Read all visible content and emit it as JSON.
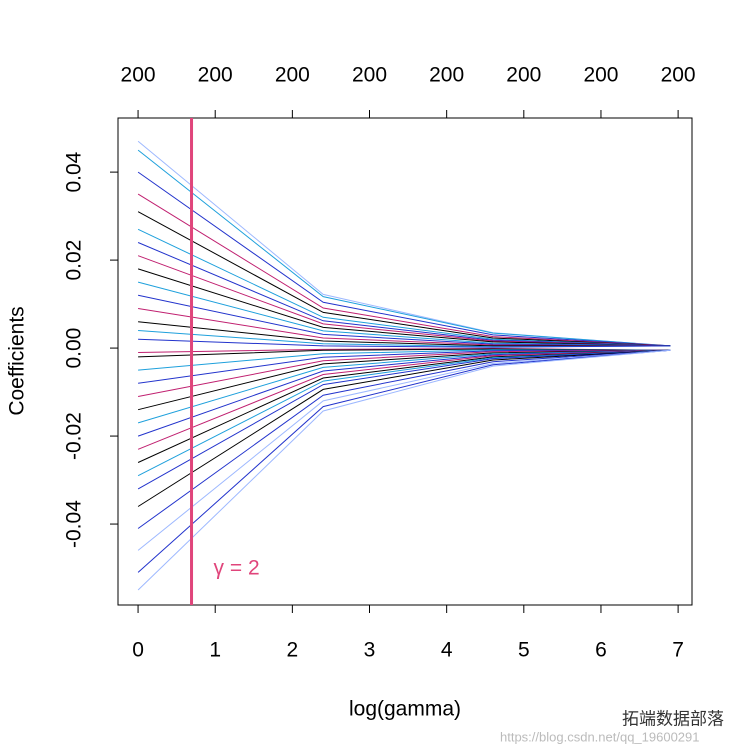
{
  "chart_data": {
    "type": "line",
    "x_label": "log(gamma)",
    "y_label": "Coefficients",
    "x": [
      0,
      2.4,
      4.6,
      6.9
    ],
    "xlim": [
      -0.26,
      7.18
    ],
    "ylim": [
      -0.0584,
      0.0523
    ],
    "xticks": [
      0,
      1,
      2,
      3,
      4,
      5,
      6,
      7
    ],
    "yticks": [
      -0.04,
      -0.02,
      {
        "value": 0,
        "label": "0.00"
      },
      0.02,
      0.04
    ],
    "top_ticks": [
      {
        "value": 0,
        "label": "200"
      },
      {
        "value": 1,
        "label": "200"
      },
      {
        "value": 2,
        "label": "200"
      },
      {
        "value": 3,
        "label": "200"
      },
      {
        "value": 4,
        "label": "200"
      },
      {
        "value": 5,
        "label": "200"
      },
      {
        "value": 6,
        "label": "200"
      },
      {
        "value": 7,
        "label": "200"
      }
    ],
    "vline": {
      "x": 0.693,
      "color": "#e0457b",
      "label": "γ = 2"
    },
    "series": [
      {
        "color": "#9db8ff",
        "values": [
          0.047,
          0.0122,
          0.0035,
          0.0005
        ]
      },
      {
        "color": "#1ea0dc",
        "values": [
          0.045,
          0.0117,
          0.0034,
          0.0005
        ]
      },
      {
        "color": "#2233cc",
        "values": [
          0.04,
          0.0104,
          0.003,
          0.0005
        ]
      },
      {
        "color": "#c02070",
        "values": [
          0.035,
          0.0091,
          0.0026,
          0.0005
        ]
      },
      {
        "color": "#000000",
        "values": [
          0.031,
          0.0081,
          0.0023,
          0.0005
        ]
      },
      {
        "color": "#1ea0dc",
        "values": [
          0.027,
          0.007,
          0.002,
          0.0005
        ]
      },
      {
        "color": "#2233cc",
        "values": [
          0.024,
          0.0062,
          0.0018,
          0.0005
        ]
      },
      {
        "color": "#c02070",
        "values": [
          0.021,
          0.0055,
          0.0016,
          0.0005
        ]
      },
      {
        "color": "#000000",
        "values": [
          0.018,
          0.0047,
          0.0014,
          0.0005
        ]
      },
      {
        "color": "#1ea0dc",
        "values": [
          0.015,
          0.0039,
          0.0011,
          0.0005
        ]
      },
      {
        "color": "#2233cc",
        "values": [
          0.012,
          0.0031,
          0.0009,
          0.0005
        ]
      },
      {
        "color": "#c02070",
        "values": [
          0.009,
          0.0023,
          0.0007,
          0.0005
        ]
      },
      {
        "color": "#000000",
        "values": [
          0.006,
          0.0016,
          0.0005,
          0.0005
        ]
      },
      {
        "color": "#1ea0dc",
        "values": [
          0.004,
          0.001,
          0.0003,
          0.0005
        ]
      },
      {
        "color": "#2233cc",
        "values": [
          0.002,
          0.0005,
          0.0002,
          0.0005
        ]
      },
      {
        "color": "#c02070",
        "values": [
          -0.001,
          -0.0003,
          -0.0001,
          -0.0005
        ]
      },
      {
        "color": "#000000",
        "values": [
          -0.002,
          -0.0005,
          -0.0002,
          -0.0005
        ]
      },
      {
        "color": "#1ea0dc",
        "values": [
          -0.005,
          -0.0013,
          -0.0004,
          -0.0005
        ]
      },
      {
        "color": "#2233cc",
        "values": [
          -0.008,
          -0.0021,
          -0.0006,
          -0.0005
        ]
      },
      {
        "color": "#c02070",
        "values": [
          -0.011,
          -0.0029,
          -0.0008,
          -0.0005
        ]
      },
      {
        "color": "#000000",
        "values": [
          -0.014,
          -0.0036,
          -0.0011,
          -0.0005
        ]
      },
      {
        "color": "#1ea0dc",
        "values": [
          -0.017,
          -0.0044,
          -0.0013,
          -0.0005
        ]
      },
      {
        "color": "#2233cc",
        "values": [
          -0.02,
          -0.0052,
          -0.0015,
          -0.0005
        ]
      },
      {
        "color": "#c02070",
        "values": [
          -0.023,
          -0.006,
          -0.0017,
          -0.0005
        ]
      },
      {
        "color": "#000000",
        "values": [
          -0.026,
          -0.0068,
          -0.002,
          -0.0005
        ]
      },
      {
        "color": "#1ea0dc",
        "values": [
          -0.029,
          -0.0075,
          -0.0022,
          -0.0005
        ]
      },
      {
        "color": "#2233cc",
        "values": [
          -0.032,
          -0.0083,
          -0.0024,
          -0.0005
        ]
      },
      {
        "color": "#000000",
        "values": [
          -0.036,
          -0.0094,
          -0.0027,
          -0.0005
        ]
      },
      {
        "color": "#2233cc",
        "values": [
          -0.041,
          -0.0107,
          -0.0031,
          -0.0005
        ]
      },
      {
        "color": "#9db8ff",
        "values": [
          -0.046,
          -0.012,
          -0.0035,
          -0.0005
        ]
      },
      {
        "color": "#2233cc",
        "values": [
          -0.051,
          -0.0133,
          -0.0038,
          -0.0005
        ]
      },
      {
        "color": "#9db8ff",
        "values": [
          -0.055,
          -0.0143,
          -0.0041,
          -0.0005
        ]
      }
    ]
  },
  "watermark": {
    "brand": "拓端数据部落",
    "url": "https://blog.csdn.net/qq_19600291"
  }
}
